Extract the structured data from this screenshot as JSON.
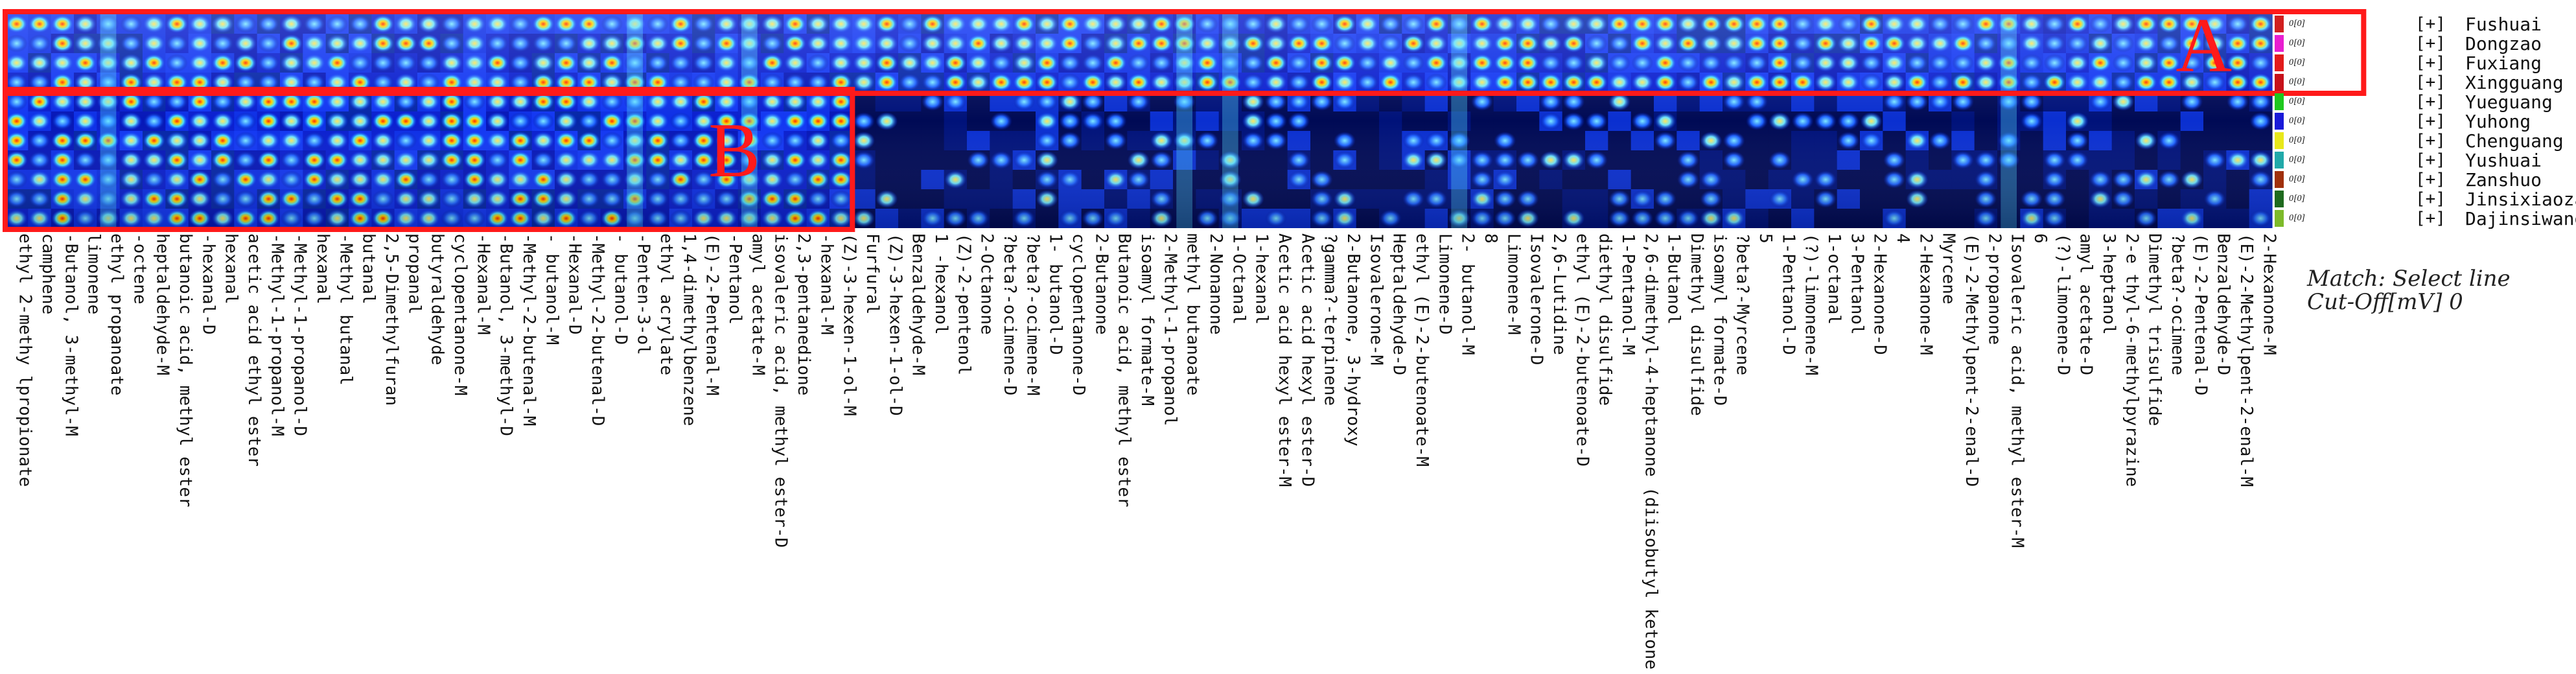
{
  "chart_data": {
    "type": "heatmap",
    "title": "",
    "xlabel": "",
    "ylabel": "",
    "samples": [
      {
        "name": "Fushuai",
        "color": "#d11f1f",
        "value": "0[0]"
      },
      {
        "name": "Dongzao",
        "color": "#e81ed0",
        "value": "0[0]"
      },
      {
        "name": "Fuxiang",
        "color": "#e21b1b",
        "value": "0[0]"
      },
      {
        "name": "Xingguang",
        "color": "#c6111a",
        "value": "0[0]"
      },
      {
        "name": "Yueguang",
        "color": "#1ec81e",
        "value": "0[0]"
      },
      {
        "name": "Yuhong",
        "color": "#1a1ad8",
        "value": "0[0]"
      },
      {
        "name": "Chenguang",
        "color": "#e8e81a",
        "value": "0[0]"
      },
      {
        "name": "Yushuai",
        "color": "#21a9a9",
        "value": "0[0]"
      },
      {
        "name": "Zanshuo",
        "color": "#a0300c",
        "value": "0[0]"
      },
      {
        "name": "Jinsixiaozao",
        "color": "#1e6a1e",
        "value": "0[0]"
      },
      {
        "name": "Dajinsiwangzao",
        "color": "#7dba2a",
        "value": "0[0]"
      }
    ],
    "compounds": [
      "ethyl 2-methy lpropionate",
      "camphene",
      "-Butanol, 3-methyl-M",
      "limonene",
      "ethyl propanoate",
      "-octene",
      "heptaldehyde-M",
      "butanoic acid, methyl ester",
      "-hexanal-D",
      "hexanal",
      "acetic acid ethyl ester",
      "-Methyl-1-propanol-M",
      "-Methyl-1-propanol-D",
      "hexanal",
      "-Methyl butanal",
      "butanal",
      "2,5-Dimethylfuran",
      "propanal",
      "butyraldehyde",
      "cyclopentanone-M",
      "-Hexanal-M",
      "-Butanol, 3-methyl-D",
      "-Methyl-2-butenal-M",
      "- butanol-M",
      "-Hexanal-D",
      "-Methyl-2-butenal-D",
      "- butanol-D",
      "-Penten-3-ol",
      "ethyl acrylate",
      "1,4-dimethylbenzene",
      "(E)-2-Pentenal-M",
      "-Pentanol",
      "amyl acetate-M",
      "isovaleric acid, methyl ester-D",
      "2,3-pentanedione",
      "-hexanal-M",
      "(Z)-3-hexen-1-ol-M",
      "Furfural",
      "(Z)-3-hexen-1-ol-D",
      "Benzaldehyde-M",
      "1 -hexanol",
      "(Z)-2-pentenol",
      "2-Octanone",
      "?beta?-ocimene-D",
      "?beta?-ocimene-M",
      "1- butanol-D",
      "cyclopentanone-D",
      "2-Butanone",
      "Butanoic acid, methyl ester",
      "isoamyl formate-M",
      "2-Methyl-1-propanol",
      "methyl butanoate",
      "2-Nonanone",
      "1-Octanal",
      "1-hexanal",
      "Acetic acid hexyl ester-M",
      "Acetic acid hexyl ester-D",
      "?gamma?-terpinene",
      "2-Butanone, 3-hydroxy",
      "Isovalerone-M",
      "Heptaldehyde-D",
      "ethyl (E)-2-butenoate-M",
      "Limonene-D",
      "2- butanol-M",
      "8",
      "Limonene-M",
      "Isovalerone-D",
      "2,6-Lutidine",
      "ethyl (E)-2-butenoate-D",
      "diethyl disulfide",
      "1-Pentanol-M",
      "2,6-dimethyl-4-heptanone (diisobutyl ketone)",
      "1-Butanol",
      "Dimethyl disulfide",
      "isoamyl formate-D",
      "?beta?-Myrcene",
      "5",
      "1-Pentanol-D",
      "(?)-limonene-M",
      "1-octanal",
      "3-Pentanol",
      "2-Hexanone-D",
      "4",
      "2-Hexanone-M",
      "Myrcene",
      "(E)-2-Methylpent-2-enal-D",
      "2-propanone",
      "Isovaleric acid, methyl ester-M",
      "6",
      "(?)-limonene-D",
      "amyl acetate-D",
      "3-heptanol",
      "2-e thyl-6-methylpyrazine",
      "Dimethyl trisulfide",
      "?beta?-ocimene",
      "(E)-2-Pentenal-D",
      "Benzaldehyde-D",
      "(E)-2-Methylpent-2-enal-M",
      "2-Hexanone-M"
    ],
    "annotations": [
      {
        "label": "A",
        "rows": [
          0,
          3
        ],
        "compounds_range": [
          0,
          102
        ]
      },
      {
        "label": "B",
        "rows": [
          4,
          10
        ],
        "compounds_range": [
          0,
          36
        ]
      }
    ],
    "legend_placement": "right",
    "match_label": "Match: Select line",
    "cutoff_label": "Cut-Off[mV] 0"
  }
}
